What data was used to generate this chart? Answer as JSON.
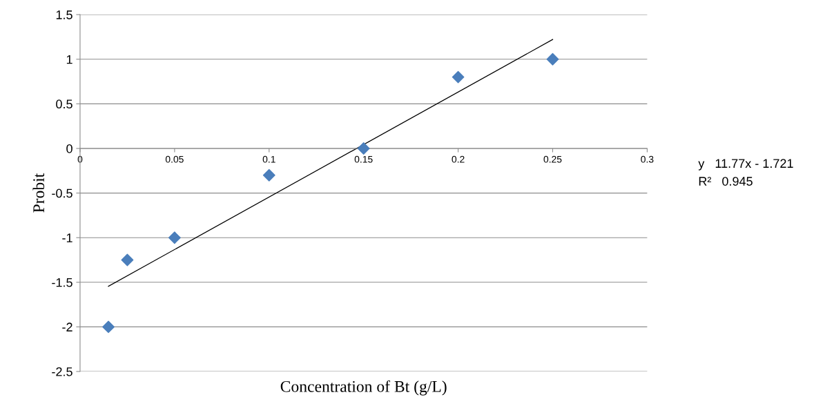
{
  "chart_data": {
    "type": "scatter",
    "xlabel": "Concentration of Bt (g/L)",
    "ylabel": "Probit",
    "xlim": [
      0,
      0.3
    ],
    "xticks": [
      0,
      0.05,
      0.1,
      0.15,
      0.2,
      0.25,
      0.3
    ],
    "ylim": [
      -2.5,
      1.5
    ],
    "yticks": [
      -2.5,
      -2,
      -1.5,
      -1,
      -0.5,
      0,
      0.5,
      1,
      1.5
    ],
    "grid": "y",
    "marker": "diamond",
    "series": [
      {
        "color": "#4a7ebb",
        "x": [
          0.015,
          0.025,
          0.05,
          0.1,
          0.15,
          0.2,
          0.25
        ],
        "values": [
          -2,
          -1.25,
          -1,
          -0.3,
          0,
          0.8,
          1
        ]
      },
      {
        "type": "line",
        "color": "#000000",
        "marker": "none",
        "line_style": "solid",
        "x": [
          0.015,
          0.25
        ],
        "values": [
          -1.545,
          1.221
        ]
      }
    ],
    "annotations": [
      "y   11.77x - 1.721",
      "R²   0.945"
    ]
  }
}
